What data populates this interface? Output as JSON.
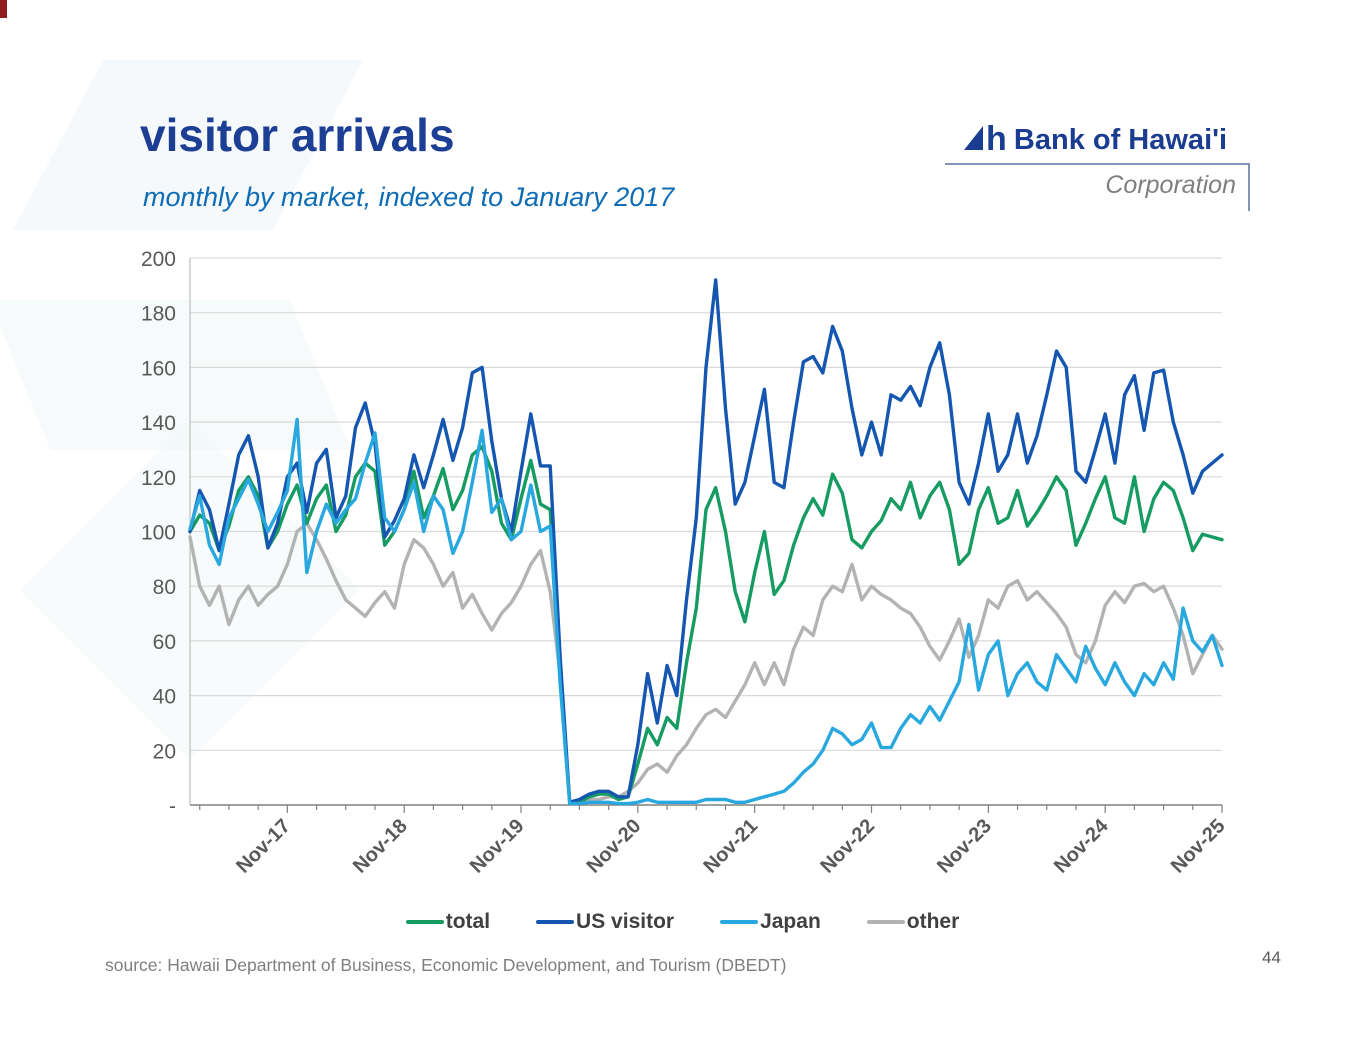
{
  "slide": {
    "title": "visitor arrivals",
    "subtitle": "monthly by market, indexed to January 2017",
    "source": "source: Hawaii Department of Business, Economic Development, and Tourism (DBEDT)",
    "page_number": "44"
  },
  "logo": {
    "name": "Bank of Hawai'i",
    "subtitle": "Corporation",
    "brand_color": "#1b3d91"
  },
  "chart_data": {
    "type": "line",
    "title": "visitor arrivals, monthly by market, indexed to January 2017",
    "x_start_label": "Jan-17",
    "months": 107,
    "x_tick_labels": [
      "Nov-17",
      "Nov-18",
      "Nov-19",
      "Nov-20",
      "Nov-21",
      "Nov-22",
      "Nov-23",
      "Nov-24",
      "Nov-25"
    ],
    "x_tick_month_indices": [
      10,
      22,
      34,
      46,
      58,
      70,
      82,
      94,
      106
    ],
    "minor_tick_every_months": 3,
    "ylim": [
      0,
      200
    ],
    "y_tick_step": 20,
    "y_tick_labels": [
      "200",
      "180",
      "160",
      "140",
      "120",
      "100",
      "80",
      "60",
      "40",
      "20",
      "-"
    ],
    "grid": true,
    "legend_position": "bottom",
    "axis_label_color": "#595959",
    "gridline_color": "#d9d9d9",
    "series": [
      {
        "name": "total",
        "color": "#169b62",
        "values": [
          100,
          106,
          103,
          93,
          102,
          115,
          120,
          113,
          94,
          100,
          110,
          117,
          103,
          112,
          117,
          100,
          106,
          120,
          125,
          122,
          95,
          100,
          108,
          122,
          105,
          113,
          123,
          108,
          115,
          128,
          131,
          122,
          103,
          97,
          112,
          126,
          110,
          108,
          50,
          1,
          1,
          3,
          4,
          4,
          2,
          3,
          15,
          28,
          22,
          32,
          28,
          52,
          72,
          108,
          116,
          100,
          78,
          67,
          85,
          100,
          77,
          82,
          95,
          105,
          112,
          106,
          121,
          114,
          97,
          94,
          100,
          104,
          112,
          108,
          118,
          105,
          113,
          118,
          108,
          88,
          92,
          108,
          116,
          103,
          105,
          115,
          102,
          107,
          113,
          120,
          115,
          95,
          103,
          112,
          120,
          105,
          103,
          120,
          100,
          112,
          118,
          115,
          105,
          93,
          99,
          98,
          97
        ]
      },
      {
        "name": "US visitor",
        "color": "#1557b0",
        "values": [
          100,
          115,
          108,
          93,
          110,
          128,
          135,
          120,
          94,
          103,
          120,
          125,
          107,
          125,
          130,
          105,
          113,
          138,
          147,
          132,
          98,
          104,
          112,
          128,
          116,
          128,
          141,
          126,
          138,
          158,
          160,
          133,
          112,
          100,
          122,
          143,
          124,
          124,
          55,
          1,
          2,
          4,
          5,
          5,
          3,
          3,
          22,
          48,
          30,
          51,
          40,
          75,
          105,
          160,
          192,
          145,
          110,
          118,
          135,
          152,
          118,
          116,
          140,
          162,
          164,
          158,
          175,
          166,
          145,
          128,
          140,
          128,
          150,
          148,
          153,
          146,
          160,
          169,
          150,
          118,
          110,
          125,
          143,
          122,
          128,
          143,
          125,
          135,
          150,
          166,
          160,
          122,
          118,
          130,
          143,
          125,
          150,
          157,
          137,
          158,
          159,
          140,
          128,
          114,
          122,
          125,
          128
        ]
      },
      {
        "name": "Japan",
        "color": "#29a8df",
        "values": [
          101,
          113,
          95,
          88,
          105,
          112,
          119,
          110,
          100,
          107,
          115,
          141,
          85,
          100,
          110,
          103,
          108,
          112,
          125,
          136,
          105,
          100,
          108,
          118,
          100,
          113,
          108,
          92,
          100,
          118,
          137,
          107,
          112,
          97,
          100,
          117,
          100,
          102,
          45,
          0.5,
          0.5,
          1,
          1,
          1,
          0.5,
          0.5,
          1,
          2,
          1,
          1,
          1,
          1,
          1,
          2,
          2,
          2,
          1,
          1,
          2,
          3,
          4,
          5,
          8,
          12,
          15,
          20,
          28,
          26,
          22,
          24,
          30,
          21,
          21,
          28,
          33,
          30,
          36,
          31,
          38,
          45,
          66,
          42,
          55,
          60,
          40,
          48,
          52,
          45,
          42,
          55,
          50,
          45,
          58,
          50,
          44,
          52,
          45,
          40,
          48,
          44,
          52,
          46,
          72,
          60,
          56,
          62,
          51
        ]
      },
      {
        "name": "other",
        "color": "#b3b3b3",
        "values": [
          98,
          80,
          73,
          80,
          66,
          75,
          80,
          73,
          77,
          80,
          88,
          100,
          103,
          97,
          90,
          82,
          75,
          72,
          69,
          74,
          78,
          72,
          88,
          97,
          94,
          88,
          80,
          85,
          72,
          77,
          70,
          64,
          70,
          74,
          80,
          88,
          93,
          78,
          48,
          1,
          1,
          2,
          2,
          3,
          3,
          5,
          8,
          13,
          15,
          12,
          18,
          22,
          28,
          33,
          35,
          32,
          38,
          44,
          52,
          44,
          52,
          44,
          57,
          65,
          62,
          75,
          80,
          78,
          88,
          75,
          80,
          77,
          75,
          72,
          70,
          65,
          58,
          53,
          60,
          68,
          54,
          62,
          75,
          72,
          80,
          82,
          75,
          78,
          74,
          70,
          65,
          55,
          52,
          60,
          73,
          78,
          74,
          80,
          81,
          78,
          80,
          72,
          62,
          48,
          55,
          62,
          57
        ]
      }
    ]
  }
}
